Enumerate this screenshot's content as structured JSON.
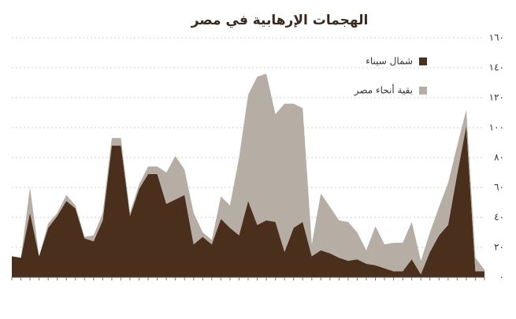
{
  "chart_data": {
    "type": "stacked-area",
    "title": "الهجمات الإرهابية في مصر",
    "categories": [
      null,
      null,
      null,
      null,
      null,
      null,
      null,
      null,
      null,
      null,
      null,
      null,
      null,
      null,
      null,
      null,
      null,
      null,
      null,
      null,
      null,
      null,
      null,
      null,
      null,
      null,
      null,
      null,
      null,
      null,
      null,
      null,
      null,
      null,
      null,
      null,
      null,
      null,
      null,
      null,
      null,
      null,
      null,
      null,
      null,
      null,
      null,
      null,
      null,
      null,
      null,
      null,
      null
    ],
    "series": [
      {
        "name": "شمال سيناء",
        "color": "#4b2f1d",
        "values": [
          14,
          13,
          43,
          14,
          33,
          41,
          51,
          46,
          26,
          24,
          38,
          88,
          88,
          41,
          59,
          69,
          69,
          49,
          52,
          55,
          22,
          27,
          22,
          39,
          33,
          28,
          51,
          35,
          38,
          37,
          17,
          33,
          37,
          14,
          18,
          16,
          13,
          11,
          12,
          9,
          8,
          6,
          4,
          4,
          12,
          2,
          17,
          28,
          35,
          69,
          101,
          4,
          4
        ]
      },
      {
        "name": "بقية أنحاء مصر",
        "color": "#b6ada4",
        "values": [
          0,
          0,
          17,
          0,
          3,
          2,
          4,
          2,
          1,
          4,
          5,
          5,
          5,
          2,
          3,
          5,
          5,
          21,
          29,
          17,
          21,
          3,
          3,
          15,
          15,
          52,
          71,
          99,
          98,
          72,
          99,
          83,
          76,
          8,
          38,
          31,
          25,
          26,
          18,
          9,
          26,
          16,
          19,
          19,
          25,
          9,
          13,
          19,
          28,
          19,
          11,
          9,
          1
        ]
      }
    ],
    "ylim": [
      0,
      160
    ],
    "yticks": [
      {
        "value": 0,
        "label": "٠"
      },
      {
        "value": 20,
        "label": "٢٠"
      },
      {
        "value": 40,
        "label": "٤٠"
      },
      {
        "value": 60,
        "label": "٦٠"
      },
      {
        "value": 80,
        "label": "٨٠"
      },
      {
        "value": 100,
        "label": "١٠٠"
      },
      {
        "value": 120,
        "label": "١٢٠"
      },
      {
        "value": 140,
        "label": "١٤٠"
      },
      {
        "value": 160,
        "label": "١٦٠"
      }
    ],
    "grid": true,
    "legend": "top-right"
  }
}
